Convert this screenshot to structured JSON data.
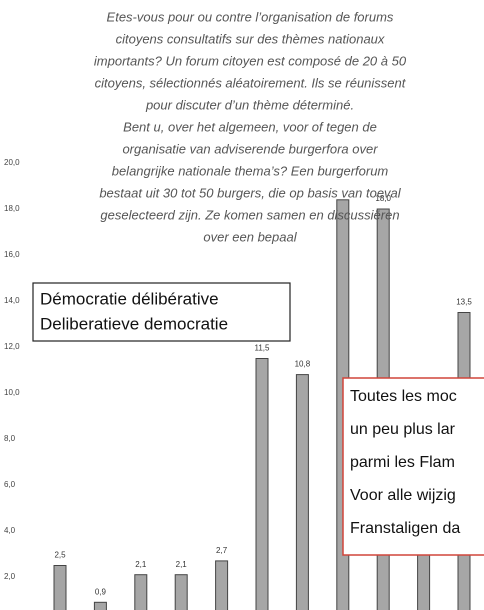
{
  "chart_data": {
    "type": "bar",
    "title": [
      "Etes-vous pour ou contre l’organisation de forums",
      "citoyens consultatifs sur des thèmes nationaux",
      "importants? Un forum citoyen est composé de 20 à 50",
      "citoyens, sélectionnés aléatoirement. Ils se réunissent",
      "pour discuter d’un thème déterminé.",
      "Bent u, over het algemeen, voor of tegen de",
      "organisatie van adviserende burgerfora over",
      "belangrijke nationale thema’s? Een burgerforum",
      "bestaat uit 30 tot 50 burgers, die op basis van toeval",
      "geselecteerd zijn. Ze komen samen en discussiëren",
      "over een bepaal"
    ],
    "values": [
      2.5,
      0.9,
      2.1,
      2.1,
      2.7,
      11.5,
      10.8,
      18.4,
      18.0,
      9.0,
      13.5
    ],
    "value_labels": [
      "2,5",
      "0,9",
      "2,1",
      "2,1",
      "2,7",
      "11,5",
      "10,8",
      null,
      "18,0",
      null,
      "13,5"
    ],
    "color": "#a6a6a6",
    "ylim": [
      0,
      20
    ],
    "yticks": [
      {
        "value": 2,
        "label": "2,0"
      },
      {
        "value": 4,
        "label": "4,0"
      },
      {
        "value": 6,
        "label": "6,0"
      },
      {
        "value": 8,
        "label": "8,0"
      },
      {
        "value": 10,
        "label": "10,0"
      },
      {
        "value": 12,
        "label": "12,0"
      },
      {
        "value": 14,
        "label": "14,0"
      },
      {
        "value": 16,
        "label": "16,0"
      },
      {
        "value": 18,
        "label": "18,0"
      },
      {
        "value": 20,
        "label": "20,0"
      }
    ],
    "annotations": [
      {
        "lines": [
          "Démocratie délibérative",
          "Deliberatieve democratie"
        ]
      },
      {
        "lines": [
          "Toutes les moc",
          "un peu plus lar",
          "parmi les Flam",
          "Voor alle wijzig",
          "Franstaligen da"
        ]
      }
    ]
  }
}
